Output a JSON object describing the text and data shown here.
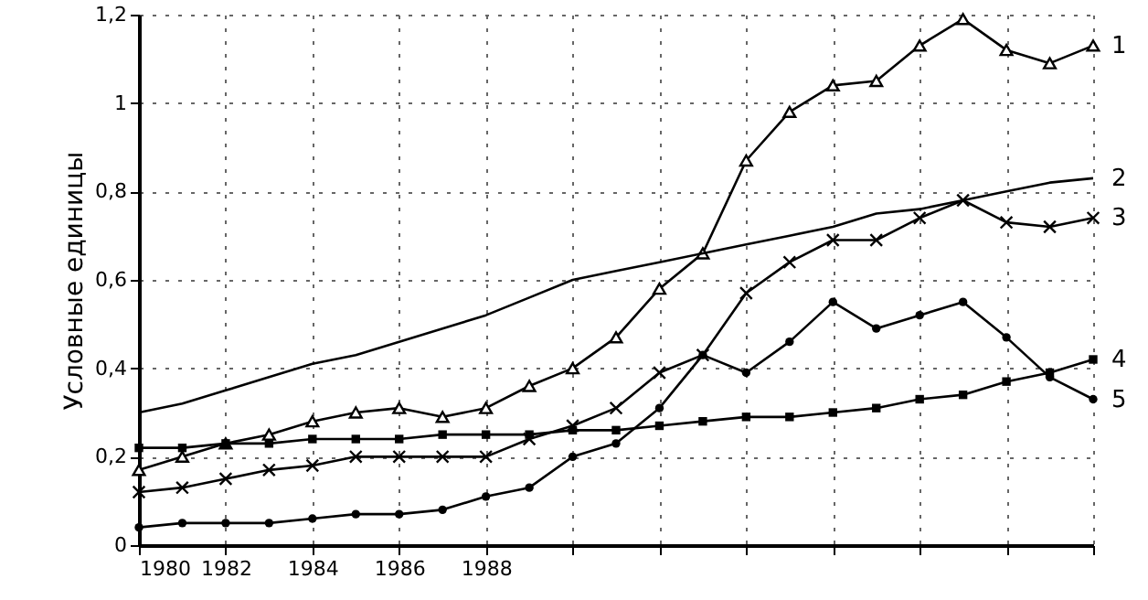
{
  "chart_data": {
    "type": "line",
    "ylabel": "Условные единицы",
    "x": [
      1980,
      1981,
      1982,
      1983,
      1984,
      1985,
      1986,
      1987,
      1988,
      1989,
      1990,
      1991,
      1992,
      1993,
      1994,
      1995,
      1996,
      1997,
      1998,
      1999,
      2000,
      2001,
      2002
    ],
    "series": [
      {
        "name": "1",
        "color": "#000000",
        "marker": "triangle",
        "values": [
          0.17,
          0.2,
          0.23,
          0.25,
          0.28,
          0.3,
          0.31,
          0.29,
          0.31,
          0.36,
          0.4,
          0.47,
          0.58,
          0.66,
          0.87,
          0.98,
          1.04,
          1.05,
          1.13,
          1.19,
          1.12,
          1.09,
          1.13
        ]
      },
      {
        "name": "2",
        "color": "#000000",
        "marker": "none",
        "values": [
          0.3,
          0.32,
          0.35,
          0.38,
          0.41,
          0.43,
          0.46,
          0.49,
          0.52,
          0.56,
          0.6,
          0.62,
          0.64,
          0.66,
          0.68,
          0.7,
          0.72,
          0.75,
          0.76,
          0.78,
          0.8,
          0.82,
          0.83
        ]
      },
      {
        "name": "3",
        "color": "#000000",
        "marker": "cross",
        "values": [
          0.12,
          0.13,
          0.15,
          0.17,
          0.18,
          0.2,
          0.2,
          0.2,
          0.2,
          0.24,
          0.27,
          0.31,
          0.39,
          0.43,
          0.57,
          0.64,
          0.69,
          0.69,
          0.74,
          0.78,
          0.73,
          0.72,
          0.74
        ]
      },
      {
        "name": "4",
        "color": "#000000",
        "marker": "square",
        "values": [
          0.22,
          0.22,
          0.23,
          0.23,
          0.24,
          0.24,
          0.24,
          0.25,
          0.25,
          0.25,
          0.26,
          0.26,
          0.27,
          0.28,
          0.29,
          0.29,
          0.3,
          0.31,
          0.33,
          0.34,
          0.37,
          0.39,
          0.42
        ]
      },
      {
        "name": "5",
        "color": "#000000",
        "marker": "circle",
        "values": [
          0.04,
          0.05,
          0.05,
          0.05,
          0.06,
          0.07,
          0.07,
          0.08,
          0.11,
          0.13,
          0.2,
          0.23,
          0.31,
          0.43,
          0.39,
          0.46,
          0.55,
          0.49,
          0.52,
          0.55,
          0.47,
          0.38,
          0.33
        ]
      }
    ],
    "xlim": [
      1980,
      2002
    ],
    "xticks": [
      1980,
      1982,
      1984,
      1986,
      1988,
      {
        "value": 1990,
        "label": null
      },
      {
        "value": 1992,
        "label": null
      },
      {
        "value": 1994,
        "label": null
      },
      {
        "value": 1996,
        "label": null
      },
      {
        "value": 1998,
        "label": null
      },
      {
        "value": 2000,
        "label": null
      },
      {
        "value": 2002,
        "label": null
      }
    ],
    "ylim": [
      0,
      1.2
    ],
    "yticks": [
      {
        "value": 0,
        "label": "0"
      },
      {
        "value": 0.2,
        "label": "0,2"
      },
      {
        "value": 0.4,
        "label": "0,4"
      },
      {
        "value": 0.6,
        "label": "0,6"
      },
      {
        "value": 0.8,
        "label": "0,8"
      },
      {
        "value": 1,
        "label": "1"
      },
      {
        "value": 1.2,
        "label": "1,2"
      }
    ],
    "grid": true
  }
}
